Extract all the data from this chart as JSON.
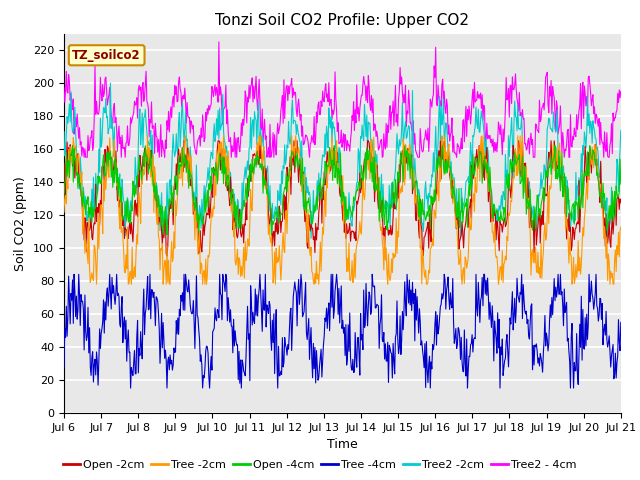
{
  "title": "Tonzi Soil CO2 Profile: Upper CO2",
  "xlabel": "Time",
  "ylabel": "Soil CO2 (ppm)",
  "ylim": [
    0,
    230
  ],
  "yticks": [
    0,
    20,
    40,
    60,
    80,
    100,
    120,
    140,
    160,
    180,
    200,
    220
  ],
  "xtick_labels": [
    "Jul 6",
    "Jul 7",
    "Jul 8",
    "Jul 9",
    "Jul 10",
    "Jul 11",
    "Jul 12",
    "Jul 13",
    "Jul 14",
    "Jul 15",
    "Jul 16",
    "Jul 17",
    "Jul 18",
    "Jul 19",
    "Jul 20",
    "Jul 21"
  ],
  "series_colors": {
    "Open-2cm": "#cc0000",
    "Tree-2cm": "#ff9900",
    "Open-4cm": "#00cc00",
    "Tree-4cm": "#0000cc",
    "Tree2-2cm": "#00cccc",
    "Tree2-4cm": "#ff00ff"
  },
  "legend_labels": [
    "Open -2cm",
    "Tree -2cm",
    "Open -4cm",
    "Tree -4cm",
    "Tree2 -2cm",
    "Tree2 - 4cm"
  ],
  "watermark": "TZ_soilco2",
  "background_color": "#e8e8e8",
  "grid_color": "white",
  "title_fontsize": 11,
  "label_fontsize": 9,
  "tick_fontsize": 8,
  "legend_fontsize": 8
}
